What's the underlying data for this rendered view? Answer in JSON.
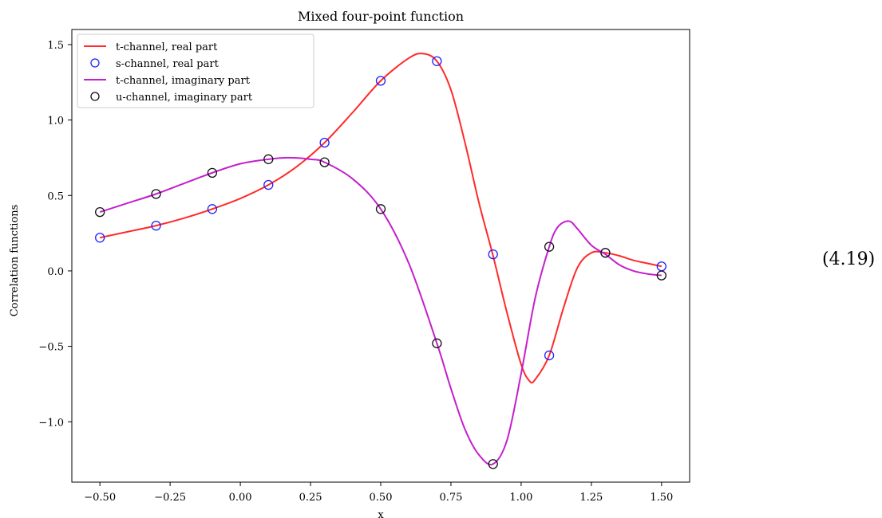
{
  "equation_number": "(4.19)",
  "chart_data": {
    "type": "line",
    "title": "Mixed four-point function",
    "xlabel": "x",
    "ylabel": "Correlation functions",
    "xlim": [
      -0.6,
      1.6
    ],
    "ylim": [
      -1.4,
      1.6
    ],
    "xticks": [
      -0.5,
      -0.25,
      0.0,
      0.25,
      0.5,
      0.75,
      1.0,
      1.25,
      1.5
    ],
    "xtick_labels": [
      "−0.50",
      "−0.25",
      "0.00",
      "0.25",
      "0.50",
      "0.75",
      "1.00",
      "1.25",
      "1.50"
    ],
    "yticks": [
      1.5,
      1.0,
      0.5,
      0.0,
      -0.5,
      -1.0
    ],
    "ytick_labels": [
      "1.5",
      "1.0",
      "0.5",
      "0.0",
      "−0.5",
      "−1.0"
    ],
    "grid": false,
    "legend_position": "upper-left",
    "series": [
      {
        "name": "t-channel, real part",
        "kind": "line",
        "color": "#ff2a2a",
        "x": [
          -0.5,
          -0.4,
          -0.3,
          -0.2,
          -0.1,
          0.0,
          0.1,
          0.2,
          0.3,
          0.4,
          0.5,
          0.6,
          0.65,
          0.7,
          0.75,
          0.8,
          0.85,
          0.9,
          0.95,
          1.0,
          1.03,
          1.05,
          1.1,
          1.15,
          1.2,
          1.25,
          1.3,
          1.35,
          1.4,
          1.45,
          1.5
        ],
        "y": [
          0.22,
          0.26,
          0.3,
          0.35,
          0.41,
          0.48,
          0.57,
          0.69,
          0.85,
          1.05,
          1.26,
          1.41,
          1.44,
          1.39,
          1.2,
          0.85,
          0.45,
          0.1,
          -0.28,
          -0.62,
          -0.73,
          -0.72,
          -0.56,
          -0.25,
          0.02,
          0.12,
          0.12,
          0.1,
          0.07,
          0.05,
          0.03
        ]
      },
      {
        "name": "s-channel, real part",
        "kind": "markers",
        "color": "#1f1fff",
        "x": [
          -0.5,
          -0.3,
          -0.1,
          0.1,
          0.3,
          0.5,
          0.7,
          0.9,
          1.1,
          1.3,
          1.5
        ],
        "y": [
          0.22,
          0.3,
          0.41,
          0.57,
          0.85,
          1.26,
          1.39,
          0.11,
          -0.56,
          0.12,
          0.03
        ]
      },
      {
        "name": "t-channel, imaginary part",
        "kind": "line",
        "color": "#c41fcc",
        "x": [
          -0.5,
          -0.4,
          -0.3,
          -0.2,
          -0.1,
          0.0,
          0.1,
          0.17,
          0.25,
          0.3,
          0.4,
          0.5,
          0.6,
          0.7,
          0.75,
          0.8,
          0.85,
          0.9,
          0.95,
          1.0,
          1.05,
          1.1,
          1.13,
          1.17,
          1.2,
          1.25,
          1.3,
          1.35,
          1.4,
          1.45,
          1.5
        ],
        "y": [
          0.39,
          0.45,
          0.51,
          0.58,
          0.65,
          0.71,
          0.74,
          0.75,
          0.74,
          0.72,
          0.61,
          0.41,
          0.05,
          -0.48,
          -0.78,
          -1.05,
          -1.22,
          -1.28,
          -1.12,
          -0.68,
          -0.18,
          0.16,
          0.29,
          0.33,
          0.28,
          0.17,
          0.11,
          0.04,
          0.0,
          -0.02,
          -0.03
        ]
      },
      {
        "name": "u-channel, imaginary part",
        "kind": "markers",
        "color": "#111111",
        "x": [
          -0.5,
          -0.3,
          -0.1,
          0.1,
          0.3,
          0.5,
          0.7,
          0.9,
          1.1,
          1.3,
          1.5
        ],
        "y": [
          0.39,
          0.51,
          0.65,
          0.74,
          0.72,
          0.41,
          -0.48,
          -1.28,
          0.16,
          0.12,
          -0.03
        ]
      }
    ]
  }
}
